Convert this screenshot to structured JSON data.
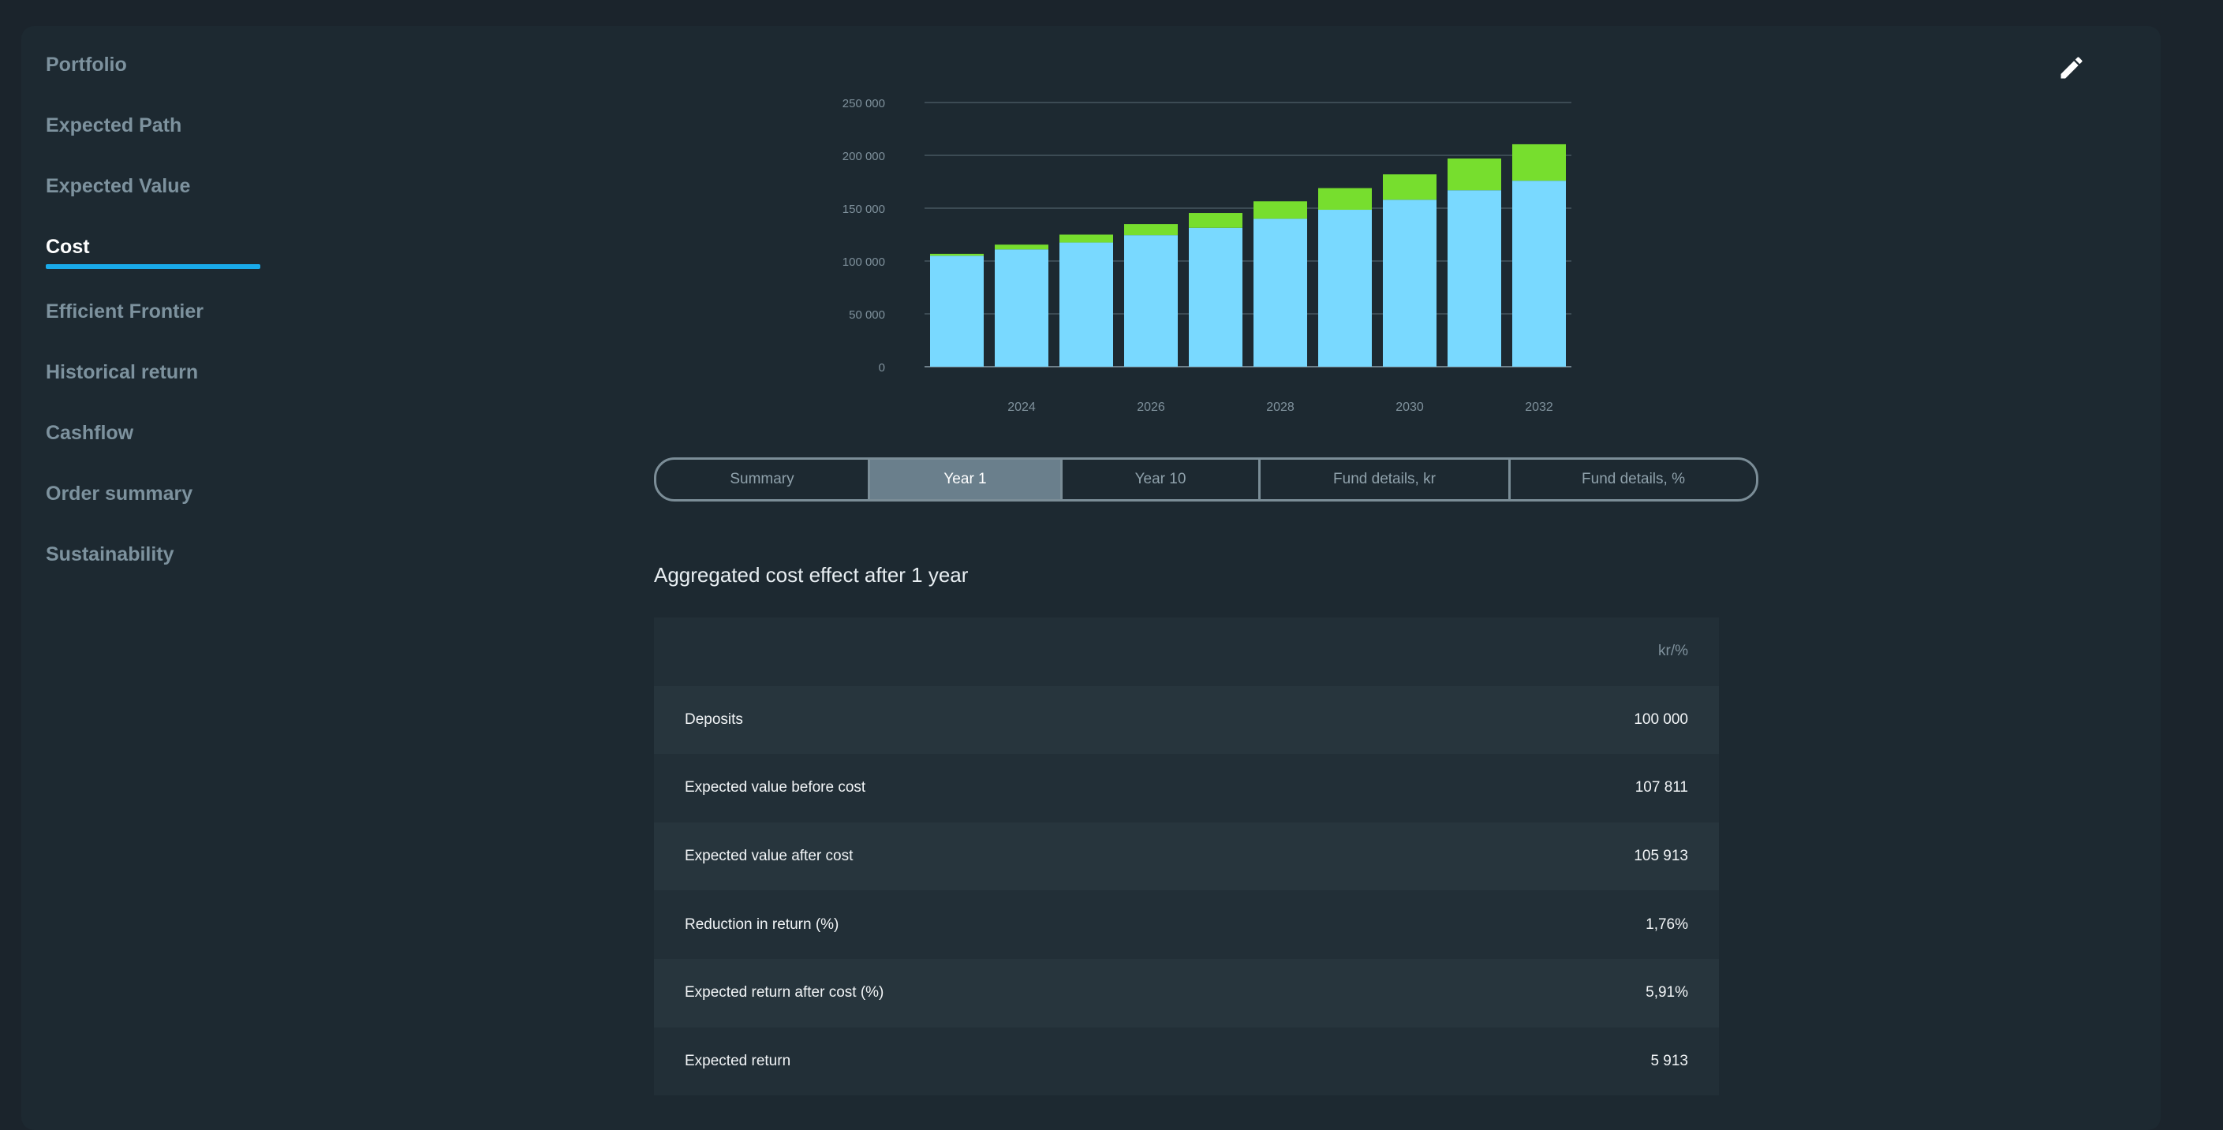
{
  "sidebar": {
    "items": [
      {
        "label": "Portfolio"
      },
      {
        "label": "Expected Path"
      },
      {
        "label": "Expected Value"
      },
      {
        "label": "Cost"
      },
      {
        "label": "Efficient Frontier"
      },
      {
        "label": "Historical return"
      },
      {
        "label": "Cashflow"
      },
      {
        "label": "Order summary"
      },
      {
        "label": "Sustainability"
      }
    ],
    "active": "Cost"
  },
  "toolbar": {
    "edit_icon": "pencil-icon"
  },
  "chart_data": {
    "type": "bar",
    "stacked": true,
    "categories": [
      "2023",
      "2024",
      "2025",
      "2026",
      "2027",
      "2028",
      "2029",
      "2030",
      "2031",
      "2032"
    ],
    "x_tick_labels": [
      "2024",
      "2026",
      "2028",
      "2030",
      "2032"
    ],
    "y_tick_labels": [
      "0",
      "50 000",
      "100 000",
      "150 000",
      "200 000",
      "250 000"
    ],
    "ylim": [
      0,
      250000
    ],
    "grid": true,
    "series": [
      {
        "color": "#79d9ff",
        "values": [
          105000,
          111000,
          117500,
          124500,
          131500,
          140000,
          148500,
          158000,
          167000,
          176000
        ]
      },
      {
        "color": "#77de2e",
        "values": [
          1800,
          4500,
          7500,
          10500,
          14000,
          16500,
          20500,
          24000,
          30000,
          34500
        ]
      }
    ],
    "title": "",
    "xlabel": "",
    "ylabel": ""
  },
  "tabs": [
    {
      "label": "Summary",
      "active": false
    },
    {
      "label": "Year 1",
      "active": true
    },
    {
      "label": "Year 10",
      "active": false
    },
    {
      "label": "Fund details, kr",
      "active": false
    },
    {
      "label": "Fund details, %",
      "active": false
    }
  ],
  "section": {
    "title": "Aggregated cost effect after 1 year"
  },
  "table": {
    "unit_header": "kr/%",
    "rows": [
      {
        "label": "Deposits",
        "value": "100 000"
      },
      {
        "label": "Expected value before cost",
        "value": "107 811"
      },
      {
        "label": "Expected value after cost",
        "value": "105 913"
      },
      {
        "label": "Reduction in return (%)",
        "value": "1,76%"
      },
      {
        "label": "Expected return after cost (%)",
        "value": "5,91%"
      },
      {
        "label": "Expected return",
        "value": "5 913"
      }
    ]
  }
}
